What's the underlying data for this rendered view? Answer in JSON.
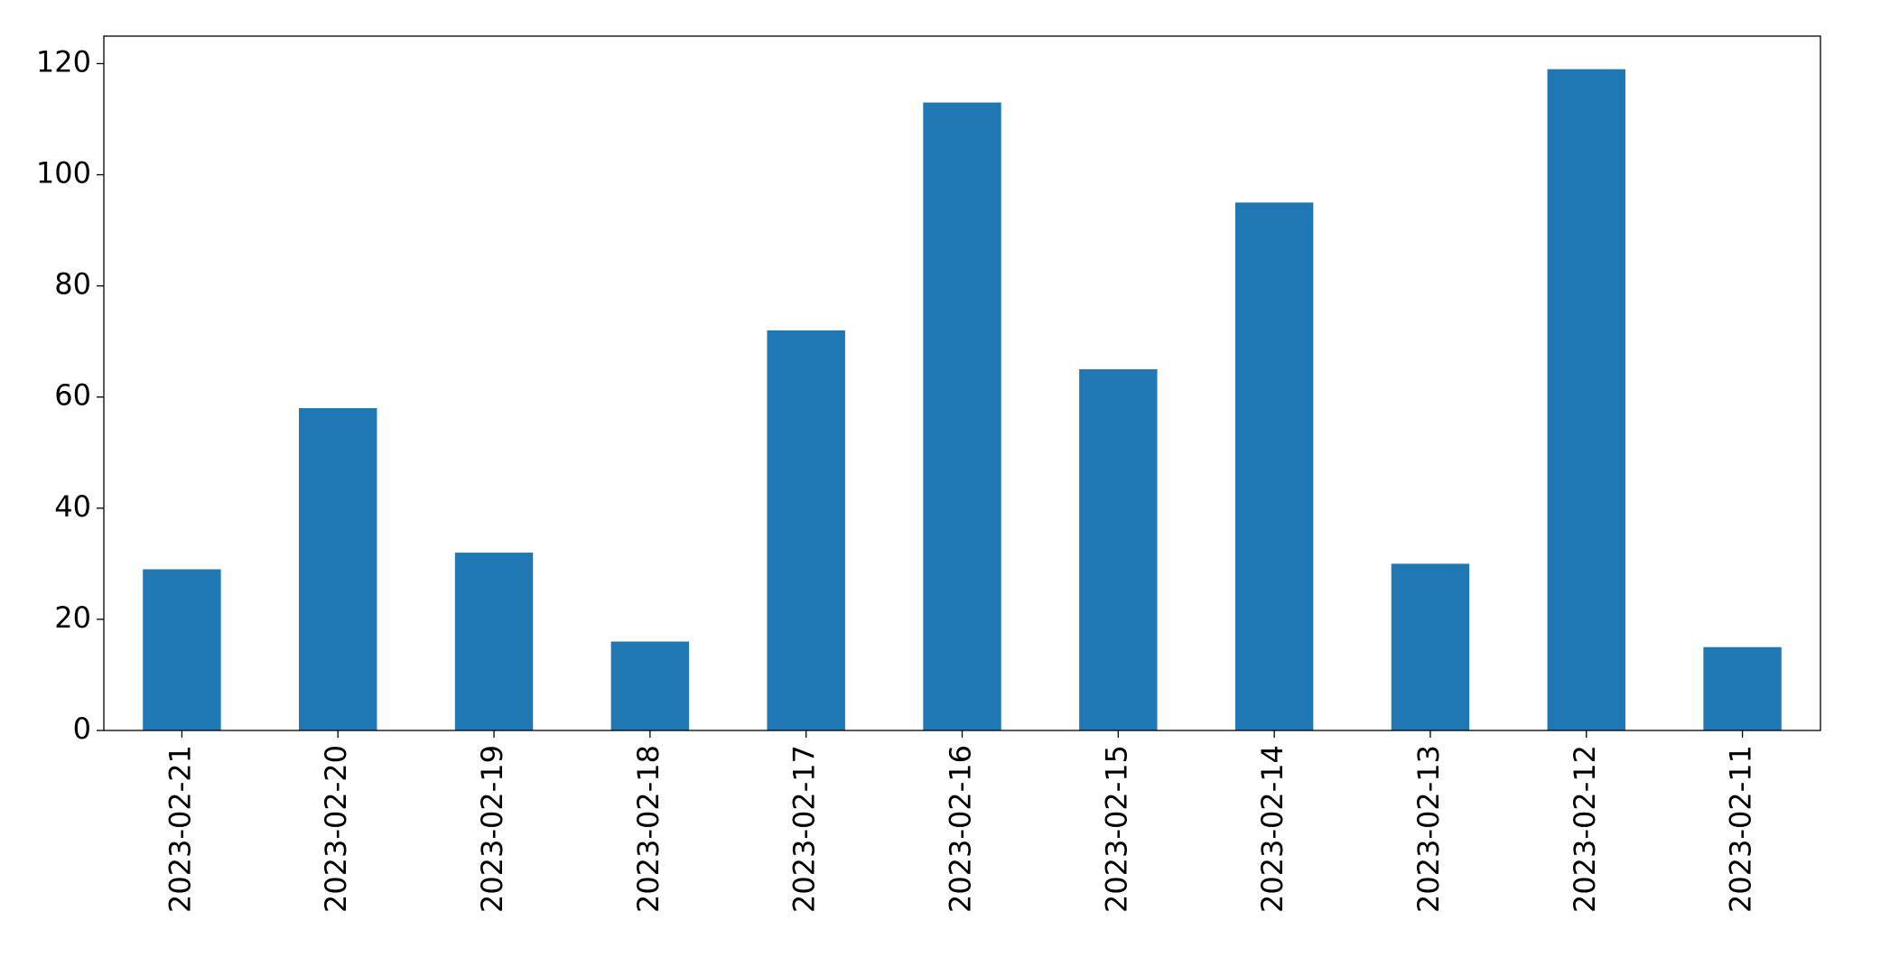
{
  "chart_data": {
    "type": "bar",
    "categories": [
      "2023-02-21",
      "2023-02-20",
      "2023-02-19",
      "2023-02-18",
      "2023-02-17",
      "2023-02-16",
      "2023-02-15",
      "2023-02-14",
      "2023-02-13",
      "2023-02-12",
      "2023-02-11"
    ],
    "values": [
      29,
      58,
      32,
      16,
      72,
      113,
      65,
      95,
      30,
      119,
      15
    ],
    "color": "#1f77b4",
    "ylim": [
      0,
      124.95
    ],
    "yticks": [
      0,
      20,
      40,
      60,
      80,
      100,
      120
    ],
    "grid": false
  }
}
